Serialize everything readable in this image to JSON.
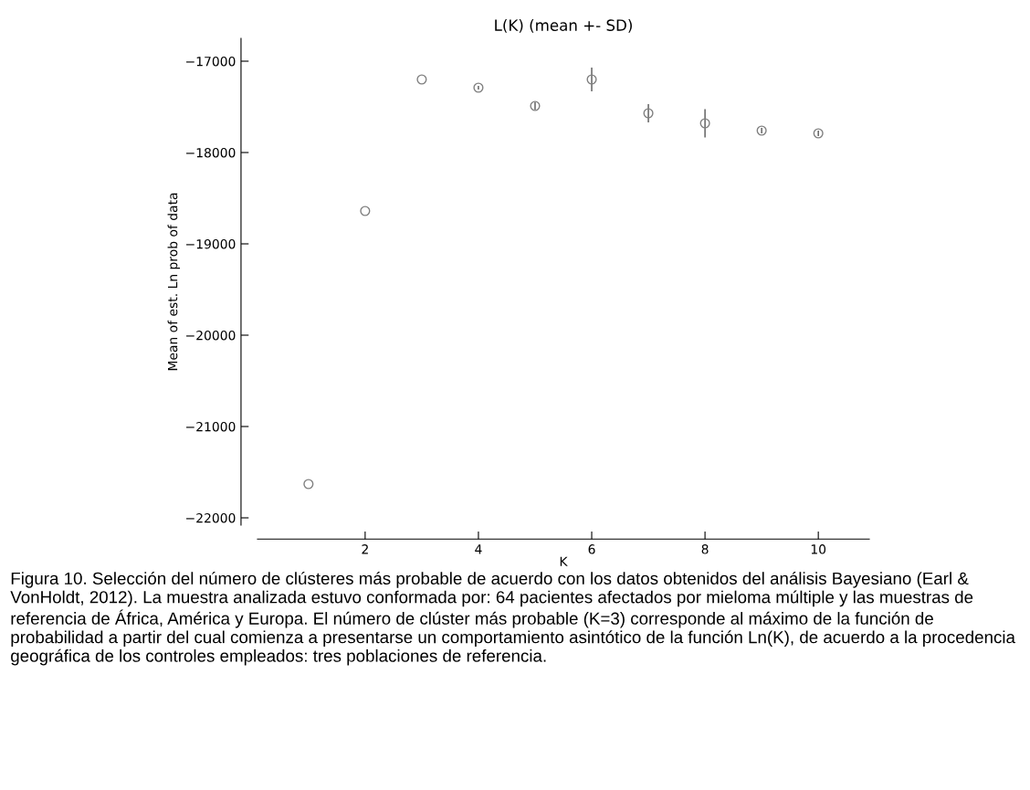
{
  "chart_data": {
    "type": "scatter",
    "title": "L(K) (mean +- SD)",
    "xlabel": "K",
    "ylabel": "Mean of est. Ln prob of data",
    "x": [
      1,
      2,
      3,
      4,
      5,
      6,
      7,
      8,
      9,
      10
    ],
    "values": [
      -21630,
      -18640,
      -17200,
      -17290,
      -17490,
      -17200,
      -17570,
      -17680,
      -17760,
      -17790
    ],
    "errors": [
      null,
      null,
      null,
      20,
      40,
      130,
      100,
      155,
      30,
      30
    ],
    "color": "#808080",
    "marker": "circle",
    "grid": false,
    "xlim": [
      0.1,
      10.9
    ],
    "xticks": [
      2,
      4,
      6,
      8,
      10
    ],
    "ylim": [
      -22080,
      -16750
    ],
    "yticks": [
      -22000,
      -21000,
      -20000,
      -19000,
      -18000,
      -17000
    ],
    "annotations": [
      "Figura 10. Selección del número de clústeres más probable de acuerdo con los datos obtenidos del análisis Bayesiano (Earl & VonHoldt, 2012). La muestra analizada estuvo conformada por: 64 pacientes afectados por mieloma múltiple y las muestras de referencia de África, América y Europa. El número de clúster más probable (K=3) corresponde al máximo de la función de probabilidad a partir del cual comienza a presentarse un comportamiento asintótico de la función Ln(K), de acuerdo a la procedencia geográfica de los controles empleados: tres poblaciones de referencia."
    ]
  }
}
